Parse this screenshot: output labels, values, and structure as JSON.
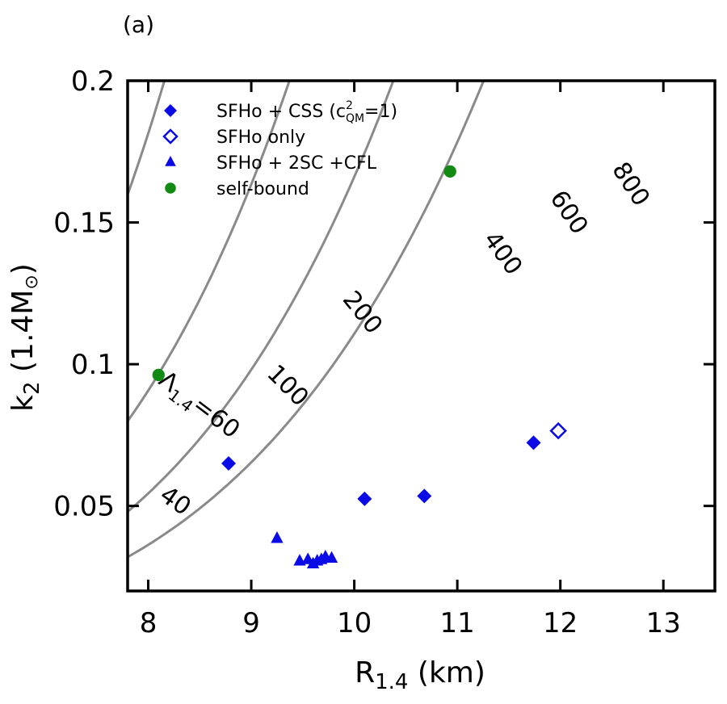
{
  "chart_data": {
    "type": "scatter",
    "panel_label": "(a)",
    "xlabel": {
      "main": "R",
      "sub": "1.4",
      "tail": " (km)"
    },
    "ylabel": {
      "main": "k",
      "sub": "2",
      "tail": " (1.4M",
      "symbol": "⊙",
      "close": ")"
    },
    "xlim": [
      7.8,
      13.5
    ],
    "ylim": [
      0.02,
      0.2
    ],
    "xticks": [
      8,
      9,
      10,
      11,
      12,
      13
    ],
    "xtick_labels": [
      "8",
      "9",
      "10",
      "11",
      "12",
      "13"
    ],
    "yticks": [
      0.05,
      0.1,
      0.15,
      0.2
    ],
    "ytick_labels": [
      "0.05",
      "0.1",
      "0.15",
      "0.2"
    ],
    "grid": false,
    "legend_position": "top-left",
    "legend": [
      {
        "marker": "diamond-filled",
        "color": "#0a0ae6",
        "label": "SFHo + CSS (c",
        "sup": "2",
        "sub": "QM",
        "label_tail": "=1)"
      },
      {
        "marker": "diamond-open",
        "color": "#0a0ae6",
        "label": "SFHo only"
      },
      {
        "marker": "triangle",
        "color": "#0a0ae6",
        "label": "SFHo + 2SC +CFL"
      },
      {
        "marker": "circle",
        "color": "#138a13",
        "label": "self-bound"
      }
    ],
    "contours": {
      "color": "#8a8a8a",
      "levels": [
        40,
        60,
        100,
        200,
        400,
        600,
        800
      ],
      "labels": [
        {
          "level": 40,
          "text": "40",
          "x": 8.22,
          "y": 0.0495,
          "angle": 35
        },
        {
          "level": 60,
          "text": "=60",
          "prefix": "Λ",
          "prefix_sub": "1.4",
          "x": 8.45,
          "y": 0.0835,
          "angle": 37
        },
        {
          "level": 100,
          "text": "100",
          "x": 9.3,
          "y": 0.0905,
          "angle": 45
        },
        {
          "level": 200,
          "text": "200",
          "x": 10.02,
          "y": 0.1165,
          "angle": 51
        },
        {
          "level": 400,
          "text": "400",
          "x": 11.38,
          "y": 0.1375,
          "angle": 54
        },
        {
          "level": 600,
          "text": "600",
          "x": 12.02,
          "y": 0.152,
          "angle": 56
        },
        {
          "level": 800,
          "text": "800",
          "x": 12.62,
          "y": 0.162,
          "angle": 57
        }
      ]
    },
    "series": [
      {
        "name": "SFHo + CSS (c²QM=1)",
        "marker": "diamond-filled",
        "color": "#0a0ae6",
        "points": [
          [
            8.78,
            0.065
          ],
          [
            10.1,
            0.0525
          ],
          [
            10.68,
            0.0535
          ],
          [
            11.74,
            0.0723
          ]
        ]
      },
      {
        "name": "SFHo only",
        "marker": "diamond-open",
        "color": "#0a0ae6",
        "points": [
          [
            11.98,
            0.0765
          ]
        ]
      },
      {
        "name": "SFHo + 2SC +CFL",
        "marker": "triangle",
        "color": "#0a0ae6",
        "points": [
          [
            9.25,
            0.0385
          ],
          [
            9.47,
            0.0305
          ],
          [
            9.55,
            0.031
          ],
          [
            9.6,
            0.0295
          ],
          [
            9.64,
            0.0305
          ],
          [
            9.68,
            0.031
          ],
          [
            9.72,
            0.032
          ],
          [
            9.78,
            0.0315
          ]
        ]
      },
      {
        "name": "self-bound",
        "marker": "circle",
        "color": "#138a13",
        "points": [
          [
            8.1,
            0.0962
          ],
          [
            10.93,
            0.168
          ]
        ]
      }
    ]
  }
}
